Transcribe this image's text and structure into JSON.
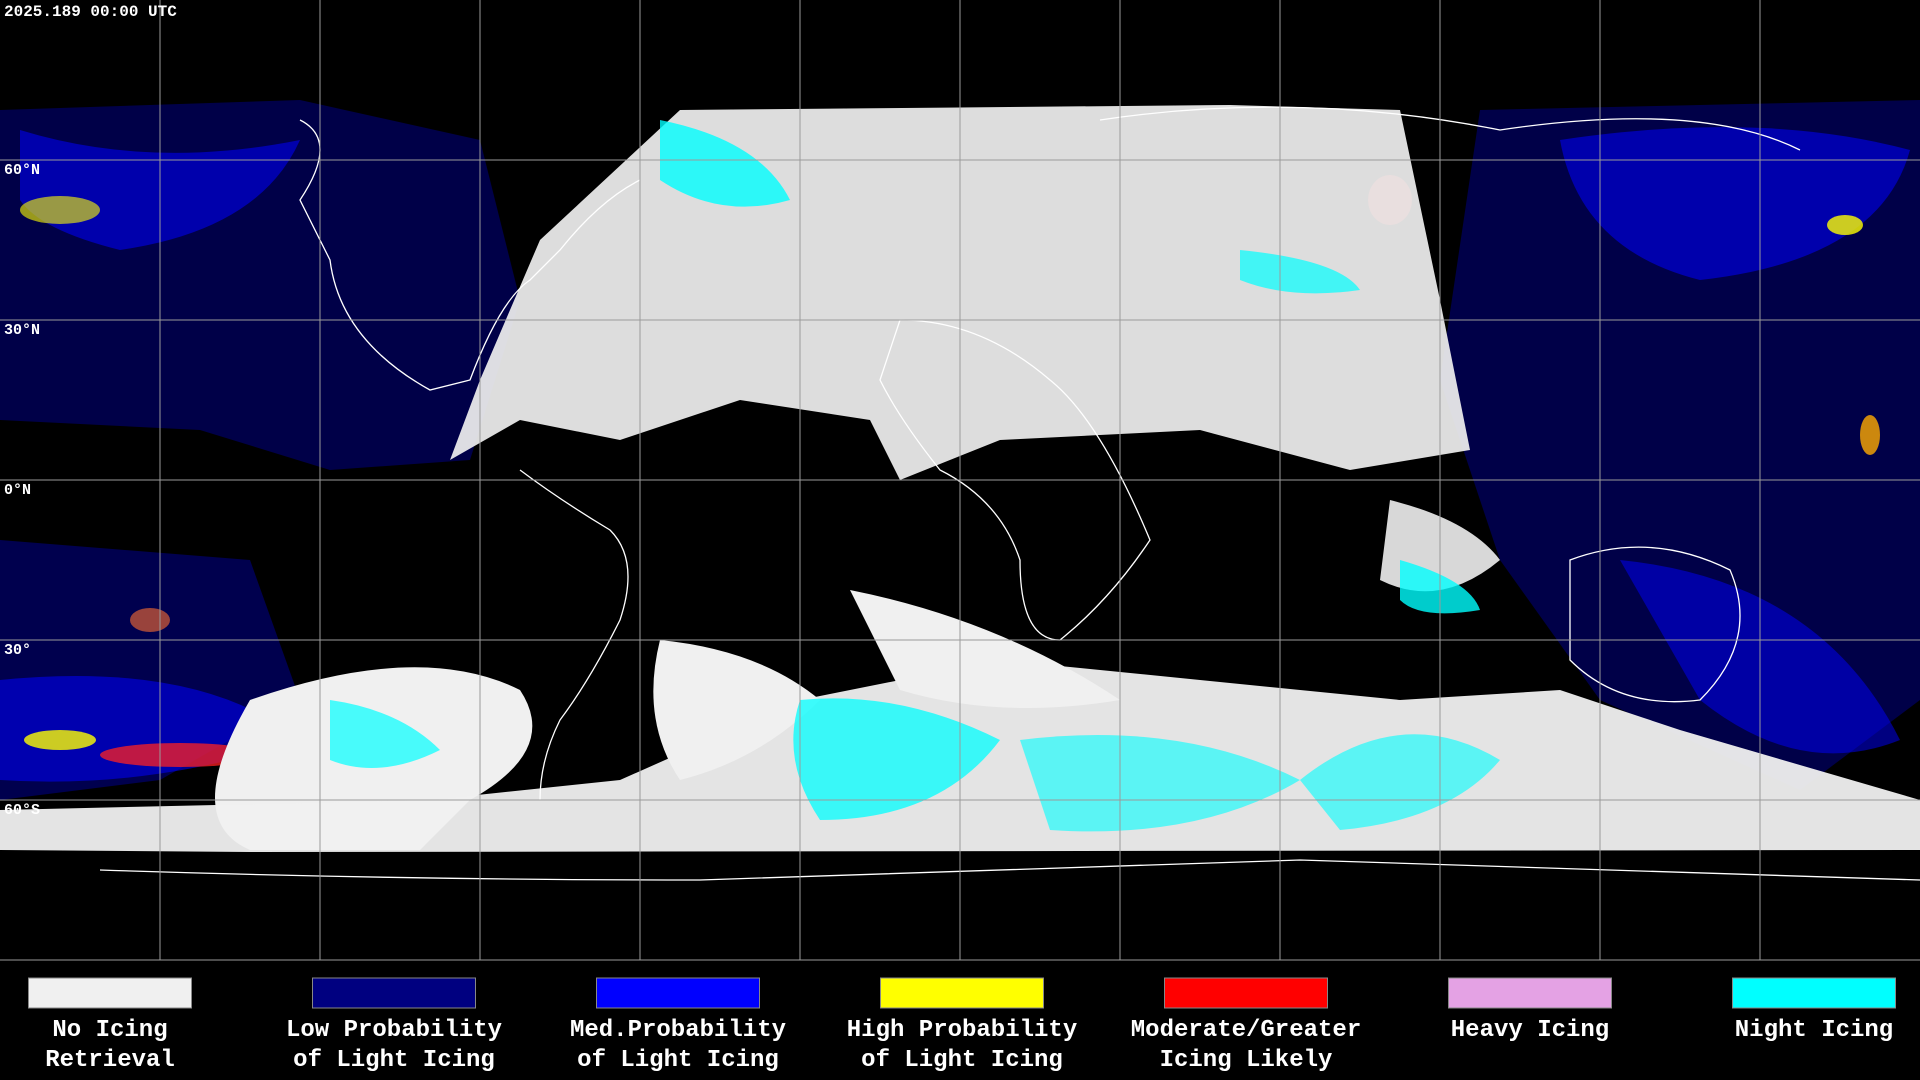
{
  "header": {
    "timestamp": "2025.189 00:00 UTC"
  },
  "map": {
    "latitude_labels": [
      "60°N",
      "30°N",
      "0°N",
      "30°",
      "60°S"
    ]
  },
  "legend": {
    "items": [
      {
        "lines": [
          "No Icing",
          "Retrieval"
        ],
        "color": "#f0f0f0"
      },
      {
        "lines": [
          "Low Probability",
          "of Light Icing"
        ],
        "color": "#000080"
      },
      {
        "lines": [
          "Med.Probability",
          "of Light Icing"
        ],
        "color": "#0000ff"
      },
      {
        "lines": [
          "High Probability",
          "of Light Icing"
        ],
        "color": "#ffff00"
      },
      {
        "lines": [
          "Moderate/Greater",
          "Icing Likely"
        ],
        "color": "#ff0000"
      },
      {
        "lines": [
          "Heavy Icing"
        ],
        "color": "#e4a2e4"
      },
      {
        "lines": [
          "Night Icing"
        ],
        "color": "#00ffff"
      }
    ]
  }
}
